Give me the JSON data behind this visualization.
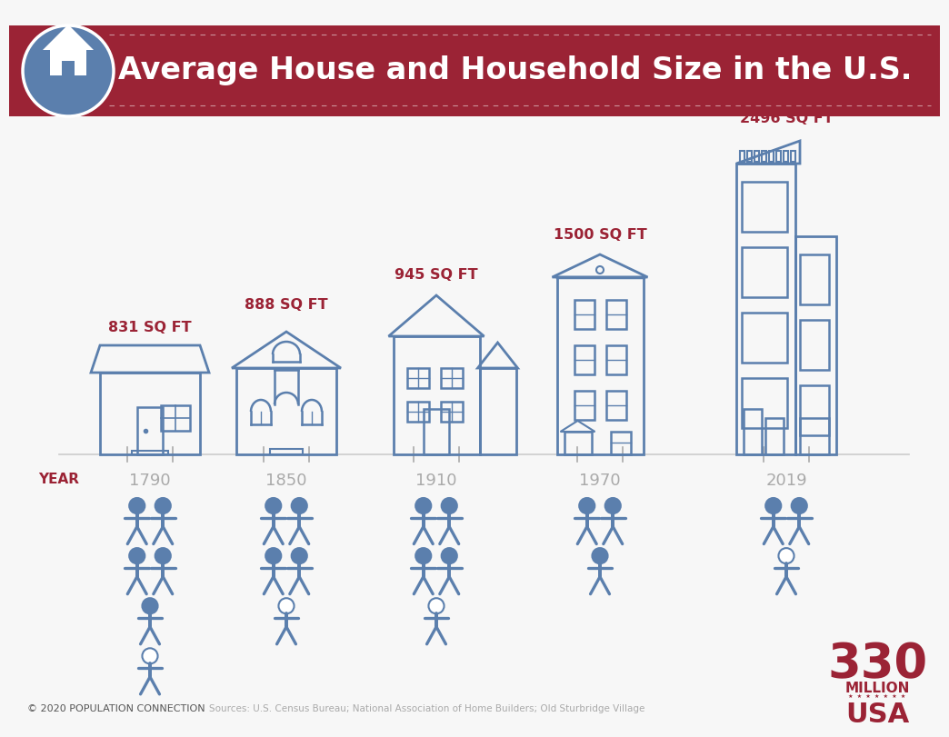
{
  "title": "Average House and Household Size in the U.S.",
  "bg_color": "#f7f7f7",
  "header_color": "#9b2335",
  "header_text_color": "#ffffff",
  "circle_color": "#5b7fad",
  "house_color": "#5b7fad",
  "people_color": "#5b7fad",
  "sqft_color": "#9b2335",
  "year_color": "#aaaaaa",
  "year_label_color": "#9b2335",
  "years": [
    "1790",
    "1850",
    "1910",
    "1970",
    "2019"
  ],
  "sq_ft": [
    "831 SQ FT",
    "888 SQ FT",
    "945 SQ FT",
    "1500 SQ FT",
    "2496 SQ FT"
  ],
  "people_counts": [
    5.79,
    4.93,
    4.54,
    3.14,
    2.53
  ],
  "footer_text": "© 2020 POPULATION CONNECTION",
  "source_text": "Sources: U.S. Census Bureau; National Association of Home Builders; Old Sturbridge Village"
}
